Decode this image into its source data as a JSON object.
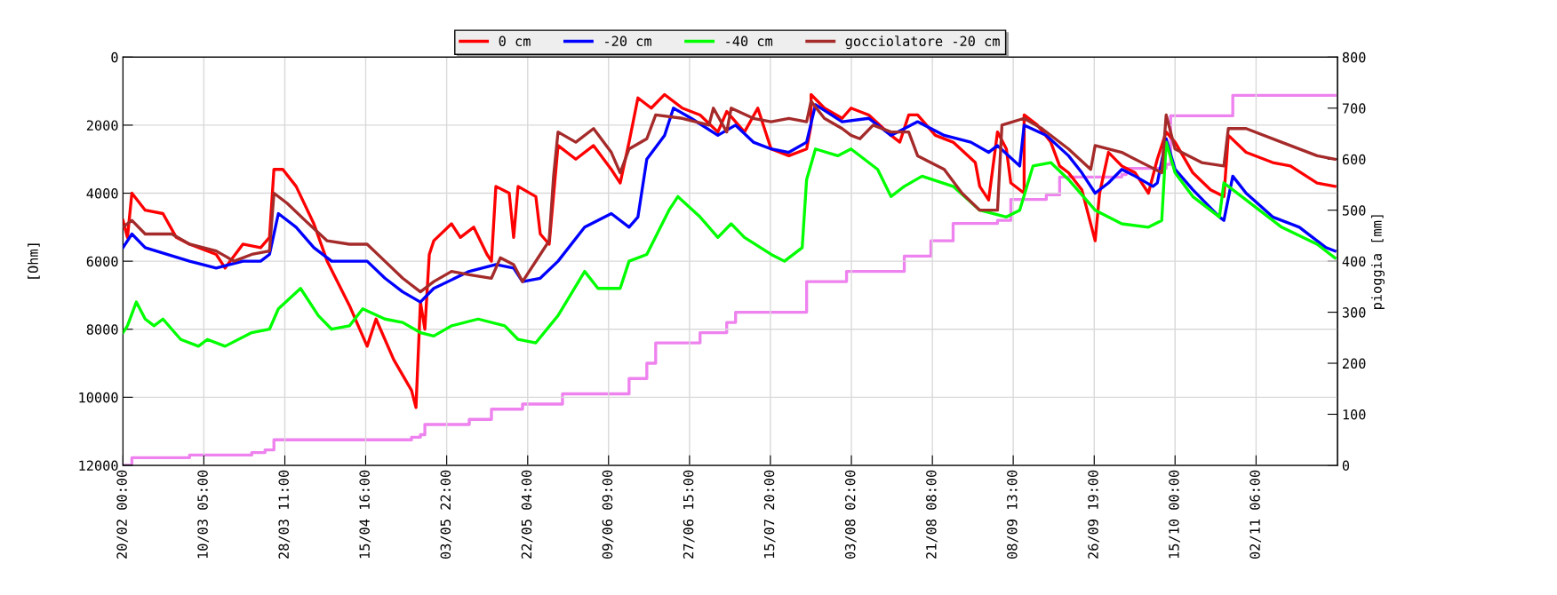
{
  "chart_data": {
    "type": "line",
    "ylabel": "[Ohm]",
    "y2label": "pioggia [mm]",
    "xlim": [
      "2011-02-20T00:00",
      "2011-11-20T14:00"
    ],
    "xticks": [
      {
        "value": "2011-02-20T00:00",
        "label": "20/02 00:00"
      },
      {
        "value": "2011-03-10T05:00",
        "label": "10/03 05:00"
      },
      {
        "value": "2011-03-28T11:00",
        "label": "28/03 11:00"
      },
      {
        "value": "2011-04-15T16:00",
        "label": "15/04 16:00"
      },
      {
        "value": "2011-05-03T22:00",
        "label": "03/05 22:00"
      },
      {
        "value": "2011-05-22T04:00",
        "label": "22/05 04:00"
      },
      {
        "value": "2011-06-09T09:00",
        "label": "09/06 09:00"
      },
      {
        "value": "2011-06-27T15:00",
        "label": "27/06 15:00"
      },
      {
        "value": "2011-07-15T20:00",
        "label": "15/07 20:00"
      },
      {
        "value": "2011-08-03T02:00",
        "label": "03/08 02:00"
      },
      {
        "value": "2011-08-21T08:00",
        "label": "21/08 08:00"
      },
      {
        "value": "2011-09-08T13:00",
        "label": "08/09 13:00"
      },
      {
        "value": "2011-09-26T19:00",
        "label": "26/09 19:00"
      },
      {
        "value": "2011-10-15T00:00",
        "label": "15/10 00:00"
      },
      {
        "value": "2011-11-02T06:00",
        "label": "02/11 06:00"
      }
    ],
    "ylim": [
      12000,
      0
    ],
    "yticks": [
      0,
      2000,
      4000,
      6000,
      8000,
      10000,
      12000
    ],
    "y2lim": [
      0,
      800
    ],
    "y2ticks": [
      0,
      100,
      200,
      300,
      400,
      500,
      600,
      700,
      800
    ],
    "grid": true,
    "legend": "top",
    "series": [
      {
        "name": "0 cm",
        "color": "#ff0000",
        "x": [
          "2011-02-20",
          "2011-02-21",
          "2011-02-22",
          "2011-02-25",
          "2011-03-01",
          "2011-03-04",
          "2011-03-07",
          "2011-03-13",
          "2011-03-15",
          "2011-03-19",
          "2011-03-23",
          "2011-03-25",
          "2011-03-26",
          "2011-03-28",
          "2011-03-31",
          "2011-04-04",
          "2011-04-07",
          "2011-04-12",
          "2011-04-16",
          "2011-04-18",
          "2011-04-22",
          "2011-04-26",
          "2011-04-27",
          "2011-04-28",
          "2011-04-29",
          "2011-04-30",
          "2011-05-01",
          "2011-05-05",
          "2011-05-07",
          "2011-05-10",
          "2011-05-13",
          "2011-05-14",
          "2011-05-15",
          "2011-05-18",
          "2011-05-19",
          "2011-05-20",
          "2011-05-24",
          "2011-05-25",
          "2011-05-27",
          "2011-05-29",
          "2011-06-02",
          "2011-06-06",
          "2011-06-10",
          "2011-06-12",
          "2011-06-14",
          "2011-06-16",
          "2011-06-19",
          "2011-06-22",
          "2011-06-26",
          "2011-06-30",
          "2011-07-04",
          "2011-07-06",
          "2011-07-10",
          "2011-07-13",
          "2011-07-16",
          "2011-07-20",
          "2011-07-24",
          "2011-07-25",
          "2011-07-25",
          "2011-07-28",
          "2011-08-01",
          "2011-08-03",
          "2011-08-07",
          "2011-08-12",
          "2011-08-14",
          "2011-08-16",
          "2011-08-18",
          "2011-08-22",
          "2011-08-26",
          "2011-08-31",
          "2011-09-01",
          "2011-09-03",
          "2011-09-05",
          "2011-09-07",
          "2011-09-08",
          "2011-09-11",
          "2011-09-11",
          "2011-09-14",
          "2011-09-17",
          "2011-09-19",
          "2011-09-21",
          "2011-09-24",
          "2011-09-27",
          "2011-09-28",
          "2011-09-30",
          "2011-10-03",
          "2011-10-06",
          "2011-10-09",
          "2011-10-11",
          "2011-10-13",
          "2011-10-15",
          "2011-10-19",
          "2011-10-23",
          "2011-10-26",
          "2011-10-27",
          "2011-10-31",
          "2011-11-06",
          "2011-11-10",
          "2011-11-16",
          "2011-11-20"
        ],
        "values": [
          4800,
          5300,
          4000,
          4500,
          4600,
          5300,
          5500,
          5800,
          6200,
          5500,
          5600,
          5300,
          3300,
          3300,
          3800,
          4900,
          6000,
          7300,
          8500,
          7700,
          8900,
          9800,
          10300,
          7200,
          8000,
          5800,
          5400,
          4900,
          5300,
          5000,
          5800,
          6000,
          3800,
          4000,
          5300,
          3800,
          4100,
          5200,
          5500,
          2600,
          3000,
          2600,
          3300,
          3700,
          2500,
          1200,
          1500,
          1100,
          1500,
          1700,
          2200,
          1600,
          2200,
          1500,
          2700,
          2900,
          2700,
          2000,
          1100,
          1500,
          1800,
          1500,
          1700,
          2300,
          2500,
          1700,
          1700,
          2300,
          2500,
          3100,
          3800,
          4200,
          2200,
          2700,
          3700,
          4000,
          1700,
          2000,
          2500,
          3200,
          3400,
          3900,
          5400,
          4000,
          2800,
          3200,
          3400,
          4000,
          3000,
          2200,
          2500,
          3400,
          3900,
          4100,
          2300,
          2800,
          3100,
          3200,
          3700,
          3800
        ]
      },
      {
        "name": "-20 cm",
        "color": "#0000ff",
        "x": [
          "2011-02-20",
          "2011-02-22",
          "2011-02-25",
          "2011-03-07",
          "2011-03-13",
          "2011-03-19",
          "2011-03-23",
          "2011-03-25",
          "2011-03-27",
          "2011-03-31",
          "2011-04-04",
          "2011-04-08",
          "2011-04-16",
          "2011-04-20",
          "2011-04-24",
          "2011-04-28",
          "2011-05-01",
          "2011-05-09",
          "2011-05-15",
          "2011-05-19",
          "2011-05-21",
          "2011-05-25",
          "2011-05-29",
          "2011-06-04",
          "2011-06-10",
          "2011-06-14",
          "2011-06-16",
          "2011-06-18",
          "2011-06-22",
          "2011-06-24",
          "2011-06-28",
          "2011-07-04",
          "2011-07-08",
          "2011-07-12",
          "2011-07-16",
          "2011-07-20",
          "2011-07-24",
          "2011-07-26",
          "2011-08-01",
          "2011-08-07",
          "2011-08-12",
          "2011-08-18",
          "2011-08-24",
          "2011-08-30",
          "2011-09-03",
          "2011-09-05",
          "2011-09-10",
          "2011-09-11",
          "2011-09-16",
          "2011-09-21",
          "2011-09-24",
          "2011-09-27",
          "2011-09-30",
          "2011-10-03",
          "2011-10-06",
          "2011-10-10",
          "2011-10-11",
          "2011-10-13",
          "2011-10-15",
          "2011-10-19",
          "2011-10-25",
          "2011-10-26",
          "2011-10-28",
          "2011-10-31",
          "2011-11-06",
          "2011-11-12",
          "2011-11-18",
          "2011-11-20"
        ],
        "values": [
          5600,
          5200,
          5600,
          6000,
          6200,
          6000,
          6000,
          5800,
          4600,
          5000,
          5600,
          6000,
          6000,
          6500,
          6900,
          7200,
          6800,
          6300,
          6100,
          6200,
          6600,
          6500,
          6000,
          5000,
          4600,
          5000,
          4700,
          3000,
          2300,
          1500,
          1800,
          2300,
          2000,
          2500,
          2700,
          2800,
          2500,
          1400,
          1900,
          1800,
          2300,
          1900,
          2300,
          2500,
          2800,
          2600,
          3200,
          2000,
          2300,
          2900,
          3400,
          4000,
          3700,
          3300,
          3500,
          3800,
          3700,
          2400,
          3300,
          3900,
          4700,
          4800,
          3500,
          4000,
          4700,
          5000,
          5600,
          5700
        ]
      },
      {
        "name": "-40 cm",
        "color": "#00ff00",
        "x": [
          "2011-02-20",
          "2011-02-21",
          "2011-02-23",
          "2011-02-25",
          "2011-02-27",
          "2011-03-01",
          "2011-03-05",
          "2011-03-09",
          "2011-03-11",
          "2011-03-15",
          "2011-03-21",
          "2011-03-25",
          "2011-03-27",
          "2011-04-01",
          "2011-04-05",
          "2011-04-08",
          "2011-04-12",
          "2011-04-15",
          "2011-04-20",
          "2011-04-24",
          "2011-04-28",
          "2011-05-01",
          "2011-05-05",
          "2011-05-11",
          "2011-05-17",
          "2011-05-20",
          "2011-05-24",
          "2011-05-29",
          "2011-06-04",
          "2011-06-07",
          "2011-06-12",
          "2011-06-14",
          "2011-06-18",
          "2011-06-23",
          "2011-06-25",
          "2011-06-30",
          "2011-07-04",
          "2011-07-07",
          "2011-07-10",
          "2011-07-16",
          "2011-07-19",
          "2011-07-23",
          "2011-07-24",
          "2011-07-26",
          "2011-07-31",
          "2011-08-03",
          "2011-08-09",
          "2011-08-12",
          "2011-08-15",
          "2011-08-19",
          "2011-08-26",
          "2011-09-01",
          "2011-09-07",
          "2011-09-10",
          "2011-09-13",
          "2011-09-17",
          "2011-09-21",
          "2011-09-27",
          "2011-10-03",
          "2011-10-09",
          "2011-10-12",
          "2011-10-13",
          "2011-10-15",
          "2011-10-19",
          "2011-10-25",
          "2011-10-26",
          "2011-10-31",
          "2011-11-08",
          "2011-11-16",
          "2011-11-20"
        ],
        "values": [
          8100,
          7900,
          7200,
          7700,
          7900,
          7700,
          8300,
          8500,
          8300,
          8500,
          8100,
          8000,
          7400,
          6800,
          7600,
          8000,
          7900,
          7400,
          7700,
          7800,
          8100,
          8200,
          7900,
          7700,
          7900,
          8300,
          8400,
          7600,
          6300,
          6800,
          6800,
          6000,
          5800,
          4500,
          4100,
          4700,
          5300,
          4900,
          5300,
          5800,
          6000,
          5600,
          3600,
          2700,
          2900,
          2700,
          3300,
          4100,
          3800,
          3500,
          3800,
          4500,
          4700,
          4500,
          3200,
          3100,
          3600,
          4500,
          4900,
          5000,
          4800,
          2500,
          3400,
          4100,
          4700,
          3700,
          4200,
          5000,
          5500,
          5900
        ]
      },
      {
        "name": "gocciolatore -20 cm",
        "color": "#a52a2a",
        "x": [
          "2011-02-20",
          "2011-02-22",
          "2011-02-25",
          "2011-03-03",
          "2011-03-07",
          "2011-03-13",
          "2011-03-17",
          "2011-03-21",
          "2011-03-25",
          "2011-03-26",
          "2011-03-29",
          "2011-04-02",
          "2011-04-07",
          "2011-04-12",
          "2011-04-16",
          "2011-04-20",
          "2011-04-24",
          "2011-04-28",
          "2011-05-01",
          "2011-05-05",
          "2011-05-09",
          "2011-05-14",
          "2011-05-16",
          "2011-05-19",
          "2011-05-21",
          "2011-05-25",
          "2011-05-27",
          "2011-05-28",
          "2011-05-29",
          "2011-06-02",
          "2011-06-06",
          "2011-06-10",
          "2011-06-12",
          "2011-06-14",
          "2011-06-18",
          "2011-06-20",
          "2011-06-26",
          "2011-07-02",
          "2011-07-03",
          "2011-07-06",
          "2011-07-07",
          "2011-07-12",
          "2011-07-16",
          "2011-07-20",
          "2011-07-24",
          "2011-07-25",
          "2011-07-28",
          "2011-08-01",
          "2011-08-03",
          "2011-08-05",
          "2011-08-08",
          "2011-08-12",
          "2011-08-16",
          "2011-08-18",
          "2011-08-24",
          "2011-08-28",
          "2011-09-01",
          "2011-09-05",
          "2011-09-06",
          "2011-09-11",
          "2011-09-15",
          "2011-09-21",
          "2011-09-26",
          "2011-09-27",
          "2011-10-03",
          "2011-10-09",
          "2011-10-12",
          "2011-10-13",
          "2011-10-15",
          "2011-10-21",
          "2011-10-26",
          "2011-10-27",
          "2011-10-31",
          "2011-11-08",
          "2011-11-16",
          "2011-11-20"
        ],
        "values": [
          5000,
          4800,
          5200,
          5200,
          5500,
          5700,
          6000,
          5800,
          5700,
          4000,
          4300,
          4800,
          5400,
          5500,
          5500,
          6000,
          6500,
          6900,
          6600,
          6300,
          6400,
          6500,
          5900,
          6100,
          6600,
          5800,
          5400,
          3500,
          2200,
          2500,
          2100,
          2800,
          3400,
          2700,
          2400,
          1700,
          1800,
          2000,
          1500,
          2200,
          1500,
          1800,
          1900,
          1800,
          1900,
          1300,
          1800,
          2100,
          2300,
          2400,
          2000,
          2200,
          2200,
          2900,
          3300,
          4000,
          4500,
          4500,
          2000,
          1800,
          2100,
          2700,
          3300,
          2600,
          2800,
          3200,
          3400,
          1700,
          2700,
          3100,
          3200,
          2100,
          2100,
          2500,
          2900,
          3000
        ]
      },
      {
        "type": "step",
        "axis": "y2",
        "color": "#ee82ee",
        "x": [
          "2011-02-20",
          "2011-02-22",
          "2011-03-07",
          "2011-03-21",
          "2011-03-24",
          "2011-03-26",
          "2011-04-26",
          "2011-04-28",
          "2011-04-29",
          "2011-05-09",
          "2011-05-14",
          "2011-05-21",
          "2011-05-30",
          "2011-06-12",
          "2011-06-14",
          "2011-06-18",
          "2011-06-20",
          "2011-06-30",
          "2011-07-06",
          "2011-07-08",
          "2011-07-23",
          "2011-07-24",
          "2011-08-02",
          "2011-08-14",
          "2011-08-15",
          "2011-08-21",
          "2011-08-26",
          "2011-09-05",
          "2011-09-08",
          "2011-09-16",
          "2011-09-19",
          "2011-10-03",
          "2011-10-04",
          "2011-10-13",
          "2011-10-14",
          "2011-10-27",
          "2011-10-28",
          "2011-11-20"
        ],
        "values": [
          0,
          15,
          20,
          25,
          30,
          50,
          55,
          60,
          80,
          90,
          110,
          120,
          140,
          140,
          170,
          200,
          240,
          260,
          280,
          300,
          300,
          360,
          380,
          380,
          410,
          440,
          474,
          480,
          521,
          530,
          565,
          570,
          582,
          590,
          685,
          685,
          725,
          725
        ]
      }
    ]
  }
}
